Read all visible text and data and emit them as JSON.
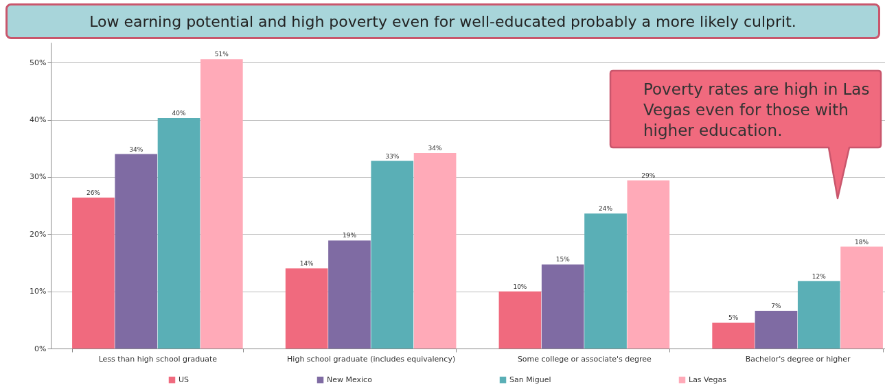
{
  "chart_data": {
    "type": "bar",
    "title": "Low earning potential and high poverty even for well-educated probably a more likely culprit.",
    "categories": [
      "Less than high school graduate",
      "High school graduate (includes equivalency)",
      "Some college or associate's degree",
      "Bachelor's degree or higher"
    ],
    "series": [
      {
        "name": "US",
        "color": "#f06a7e",
        "values": [
          26.4,
          14.0,
          10.0,
          4.5
        ],
        "value_labels": [
          "26%",
          "14%",
          "10%",
          "5%"
        ]
      },
      {
        "name": "New Mexico",
        "color": "#7f6ba3",
        "values": [
          34.0,
          18.9,
          14.7,
          6.6
        ],
        "value_labels": [
          "34%",
          "19%",
          "15%",
          "7%"
        ]
      },
      {
        "name": "San Miguel",
        "color": "#5aafb6",
        "values": [
          40.3,
          32.8,
          23.6,
          11.8
        ],
        "value_labels": [
          "40%",
          "33%",
          "24%",
          "12%"
        ]
      },
      {
        "name": "Las Vegas",
        "color": "#ffaab8",
        "values": [
          50.6,
          34.2,
          29.4,
          17.8
        ],
        "value_labels": [
          "51%",
          "34%",
          "29%",
          "18%"
        ]
      }
    ],
    "ylim": [
      0,
      53.5
    ],
    "yticks": [
      {
        "value": 0,
        "label": "0%"
      },
      {
        "value": 10,
        "label": "10%"
      },
      {
        "value": 20,
        "label": "20%"
      },
      {
        "value": 30,
        "label": "30%"
      },
      {
        "value": 40,
        "label": "40%"
      },
      {
        "value": 50,
        "label": "50%"
      }
    ],
    "grid": "y",
    "legend": "bottom",
    "annotations": [
      "Poverty rates are high in Las Vegas even for those with higher education."
    ]
  }
}
